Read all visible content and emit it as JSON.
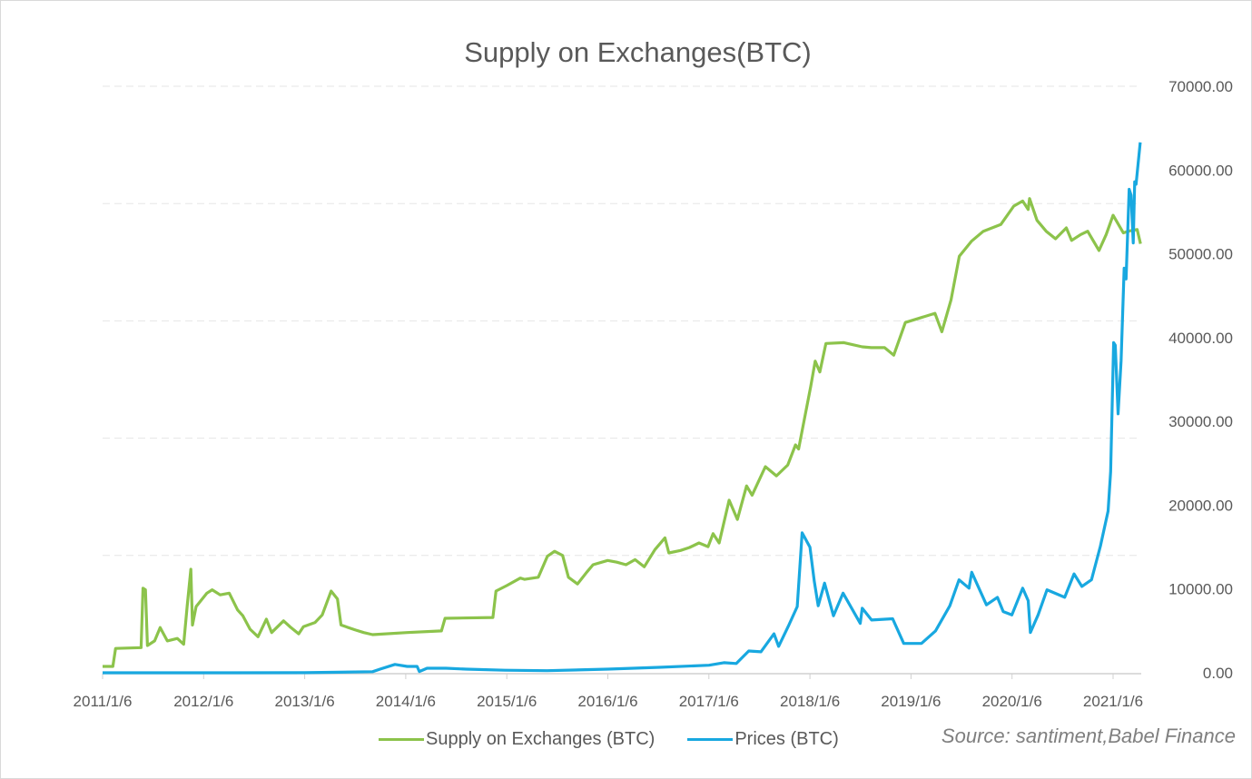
{
  "chart_data": {
    "type": "line",
    "title": "Supply on Exchanges(BTC)",
    "source": "Source: santiment,Babel Finance",
    "x_tick_labels": [
      "2011/1/6",
      "2012/1/6",
      "2013/1/6",
      "2014/1/6",
      "2015/1/6",
      "2016/1/6",
      "2017/1/6",
      "2018/1/6",
      "2019/1/6",
      "2020/1/6",
      "2021/1/6"
    ],
    "y_axis": {
      "position": "right",
      "ylim": [
        0,
        70000
      ],
      "tick_labels": [
        "0.00",
        "10000.00",
        "20000.00",
        "30000.00",
        "40000.00",
        "50000.00",
        "60000.00",
        "70000.00"
      ]
    },
    "grid": "horizontal dashed",
    "legend": "bottom",
    "series": [
      {
        "name": "Supply on Exchanges (BTC)",
        "color": "#8cc34b",
        "points": [
          [
            "2011-01-06",
            760
          ],
          [
            "2011-02-12",
            760
          ],
          [
            "2011-02-22",
            2900
          ],
          [
            "2011-05-25",
            3000
          ],
          [
            "2011-06-01",
            10100
          ],
          [
            "2011-06-10",
            9900
          ],
          [
            "2011-06-17",
            3250
          ],
          [
            "2011-07-13",
            3800
          ],
          [
            "2011-08-02",
            5400
          ],
          [
            "2011-08-28",
            3800
          ],
          [
            "2011-10-03",
            4100
          ],
          [
            "2011-10-26",
            3400
          ],
          [
            "2011-11-08",
            8000
          ],
          [
            "2011-11-21",
            12350
          ],
          [
            "2011-11-27",
            5700
          ],
          [
            "2011-12-10",
            7900
          ],
          [
            "2012-01-18",
            9500
          ],
          [
            "2012-02-06",
            9900
          ],
          [
            "2012-03-06",
            9300
          ],
          [
            "2012-04-08",
            9500
          ],
          [
            "2012-05-08",
            7500
          ],
          [
            "2012-05-27",
            6800
          ],
          [
            "2012-06-22",
            5200
          ],
          [
            "2012-07-21",
            4300
          ],
          [
            "2012-08-20",
            6400
          ],
          [
            "2012-09-08",
            4800
          ],
          [
            "2012-10-21",
            6200
          ],
          [
            "2012-11-13",
            5500
          ],
          [
            "2012-12-15",
            4650
          ],
          [
            "2013-01-01",
            5500
          ],
          [
            "2013-02-12",
            6000
          ],
          [
            "2013-03-10",
            6900
          ],
          [
            "2013-04-11",
            9750
          ],
          [
            "2013-05-04",
            8800
          ],
          [
            "2013-05-17",
            5700
          ],
          [
            "2013-07-08",
            5100
          ],
          [
            "2013-08-07",
            4800
          ],
          [
            "2013-09-08",
            4550
          ],
          [
            "2014-01-11",
            4800
          ],
          [
            "2014-05-15",
            5000
          ],
          [
            "2014-05-28",
            6500
          ],
          [
            "2014-11-17",
            6600
          ],
          [
            "2014-11-28",
            9750
          ],
          [
            "2015-01-06",
            10400
          ],
          [
            "2015-02-24",
            11300
          ],
          [
            "2015-03-12",
            11150
          ],
          [
            "2015-04-30",
            11400
          ],
          [
            "2015-06-02",
            13900
          ],
          [
            "2015-06-28",
            14500
          ],
          [
            "2015-07-27",
            14000
          ],
          [
            "2015-08-17",
            11400
          ],
          [
            "2015-09-19",
            10600
          ],
          [
            "2015-10-22",
            12000
          ],
          [
            "2015-11-14",
            12900
          ],
          [
            "2016-01-06",
            13400
          ],
          [
            "2016-02-08",
            13200
          ],
          [
            "2016-03-12",
            12900
          ],
          [
            "2016-04-14",
            13500
          ],
          [
            "2016-05-17",
            12650
          ],
          [
            "2016-06-25",
            14700
          ],
          [
            "2016-07-31",
            16100
          ],
          [
            "2016-08-14",
            14300
          ],
          [
            "2016-09-25",
            14600
          ],
          [
            "2016-10-28",
            14950
          ],
          [
            "2016-12-01",
            15500
          ],
          [
            "2017-01-03",
            15050
          ],
          [
            "2017-01-21",
            16600
          ],
          [
            "2017-02-12",
            15500
          ],
          [
            "2017-03-20",
            20600
          ],
          [
            "2017-04-19",
            18300
          ],
          [
            "2017-05-22",
            22300
          ],
          [
            "2017-06-11",
            21200
          ],
          [
            "2017-07-29",
            24600
          ],
          [
            "2017-09-07",
            23500
          ],
          [
            "2017-10-18",
            24800
          ],
          [
            "2017-11-15",
            27200
          ],
          [
            "2017-11-26",
            26700
          ],
          [
            "2018-01-09",
            34200
          ],
          [
            "2018-01-25",
            37200
          ],
          [
            "2018-02-11",
            35900
          ],
          [
            "2018-03-05",
            39300
          ],
          [
            "2018-05-09",
            39400
          ],
          [
            "2018-07-14",
            38900
          ],
          [
            "2018-08-16",
            38800
          ],
          [
            "2018-10-03",
            38800
          ],
          [
            "2018-11-05",
            37900
          ],
          [
            "2018-12-17",
            41800
          ],
          [
            "2019-04-03",
            42900
          ],
          [
            "2019-04-28",
            40700
          ],
          [
            "2019-05-31",
            44500
          ],
          [
            "2019-06-30",
            49700
          ],
          [
            "2019-08-13",
            51500
          ],
          [
            "2019-09-25",
            52700
          ],
          [
            "2019-11-27",
            53500
          ],
          [
            "2020-01-13",
            55700
          ],
          [
            "2020-02-14",
            56300
          ],
          [
            "2020-03-05",
            55300
          ],
          [
            "2020-03-10",
            56600
          ],
          [
            "2020-04-06",
            54000
          ],
          [
            "2020-05-09",
            52700
          ],
          [
            "2020-06-12",
            51800
          ],
          [
            "2020-07-21",
            53100
          ],
          [
            "2020-08-09",
            51600
          ],
          [
            "2020-09-11",
            52300
          ],
          [
            "2020-10-06",
            52700
          ],
          [
            "2020-11-16",
            50400
          ],
          [
            "2020-12-12",
            52300
          ],
          [
            "2021-01-06",
            54600
          ],
          [
            "2021-02-12",
            52500
          ],
          [
            "2021-03-01",
            52700
          ],
          [
            "2021-04-03",
            52900
          ],
          [
            "2021-04-15",
            51200
          ]
        ]
      },
      {
        "name": "Prices (BTC)",
        "color": "#18a8e0",
        "points": [
          [
            "2011-01-06",
            0
          ],
          [
            "2012-01-06",
            5
          ],
          [
            "2013-01-06",
            15
          ],
          [
            "2013-09-08",
            130
          ],
          [
            "2013-10-05",
            430
          ],
          [
            "2013-11-28",
            1000
          ],
          [
            "2014-01-11",
            760
          ],
          [
            "2014-02-16",
            760
          ],
          [
            "2014-02-24",
            150
          ],
          [
            "2014-03-24",
            540
          ],
          [
            "2014-06-01",
            540
          ],
          [
            "2014-08-13",
            430
          ],
          [
            "2014-12-30",
            300
          ],
          [
            "2015-06-01",
            250
          ],
          [
            "2016-01-06",
            430
          ],
          [
            "2016-07-10",
            650
          ],
          [
            "2017-01-06",
            900
          ],
          [
            "2017-03-01",
            1200
          ],
          [
            "2017-04-15",
            1100
          ],
          [
            "2017-05-30",
            2600
          ],
          [
            "2017-07-13",
            2500
          ],
          [
            "2017-08-29",
            4650
          ],
          [
            "2017-09-15",
            3150
          ],
          [
            "2017-10-22",
            5700
          ],
          [
            "2017-11-21",
            7900
          ],
          [
            "2017-12-09",
            16700
          ],
          [
            "2018-01-06",
            15000
          ],
          [
            "2018-01-22",
            10900
          ],
          [
            "2018-02-05",
            8000
          ],
          [
            "2018-02-28",
            10700
          ],
          [
            "2018-04-01",
            6800
          ],
          [
            "2018-05-06",
            9500
          ],
          [
            "2018-07-07",
            5900
          ],
          [
            "2018-07-14",
            7700
          ],
          [
            "2018-08-17",
            6300
          ],
          [
            "2018-11-01",
            6450
          ],
          [
            "2018-12-11",
            3500
          ],
          [
            "2019-02-13",
            3500
          ],
          [
            "2019-04-05",
            5000
          ],
          [
            "2019-05-27",
            8000
          ],
          [
            "2019-06-29",
            11100
          ],
          [
            "2019-08-04",
            10100
          ],
          [
            "2019-08-14",
            12000
          ],
          [
            "2019-10-06",
            8100
          ],
          [
            "2019-11-15",
            9000
          ],
          [
            "2019-12-06",
            7300
          ],
          [
            "2020-01-06",
            6900
          ],
          [
            "2020-02-14",
            10100
          ],
          [
            "2020-03-05",
            8600
          ],
          [
            "2020-03-13",
            4800
          ],
          [
            "2020-04-10",
            6900
          ],
          [
            "2020-05-12",
            9900
          ],
          [
            "2020-07-15",
            9000
          ],
          [
            "2020-08-18",
            11800
          ],
          [
            "2020-09-15",
            10300
          ],
          [
            "2020-10-20",
            11100
          ],
          [
            "2020-11-21",
            15100
          ],
          [
            "2020-12-19",
            19300
          ],
          [
            "2020-12-28",
            24000
          ],
          [
            "2021-01-08",
            39400
          ],
          [
            "2021-01-14",
            39100
          ],
          [
            "2021-01-24",
            30900
          ],
          [
            "2021-02-04",
            37200
          ],
          [
            "2021-02-15",
            48300
          ],
          [
            "2021-02-22",
            47000
          ],
          [
            "2021-03-05",
            57700
          ],
          [
            "2021-03-12",
            57000
          ],
          [
            "2021-03-20",
            51300
          ],
          [
            "2021-03-25",
            58600
          ],
          [
            "2021-03-30",
            58300
          ],
          [
            "2021-04-14",
            63300
          ]
        ]
      }
    ]
  }
}
